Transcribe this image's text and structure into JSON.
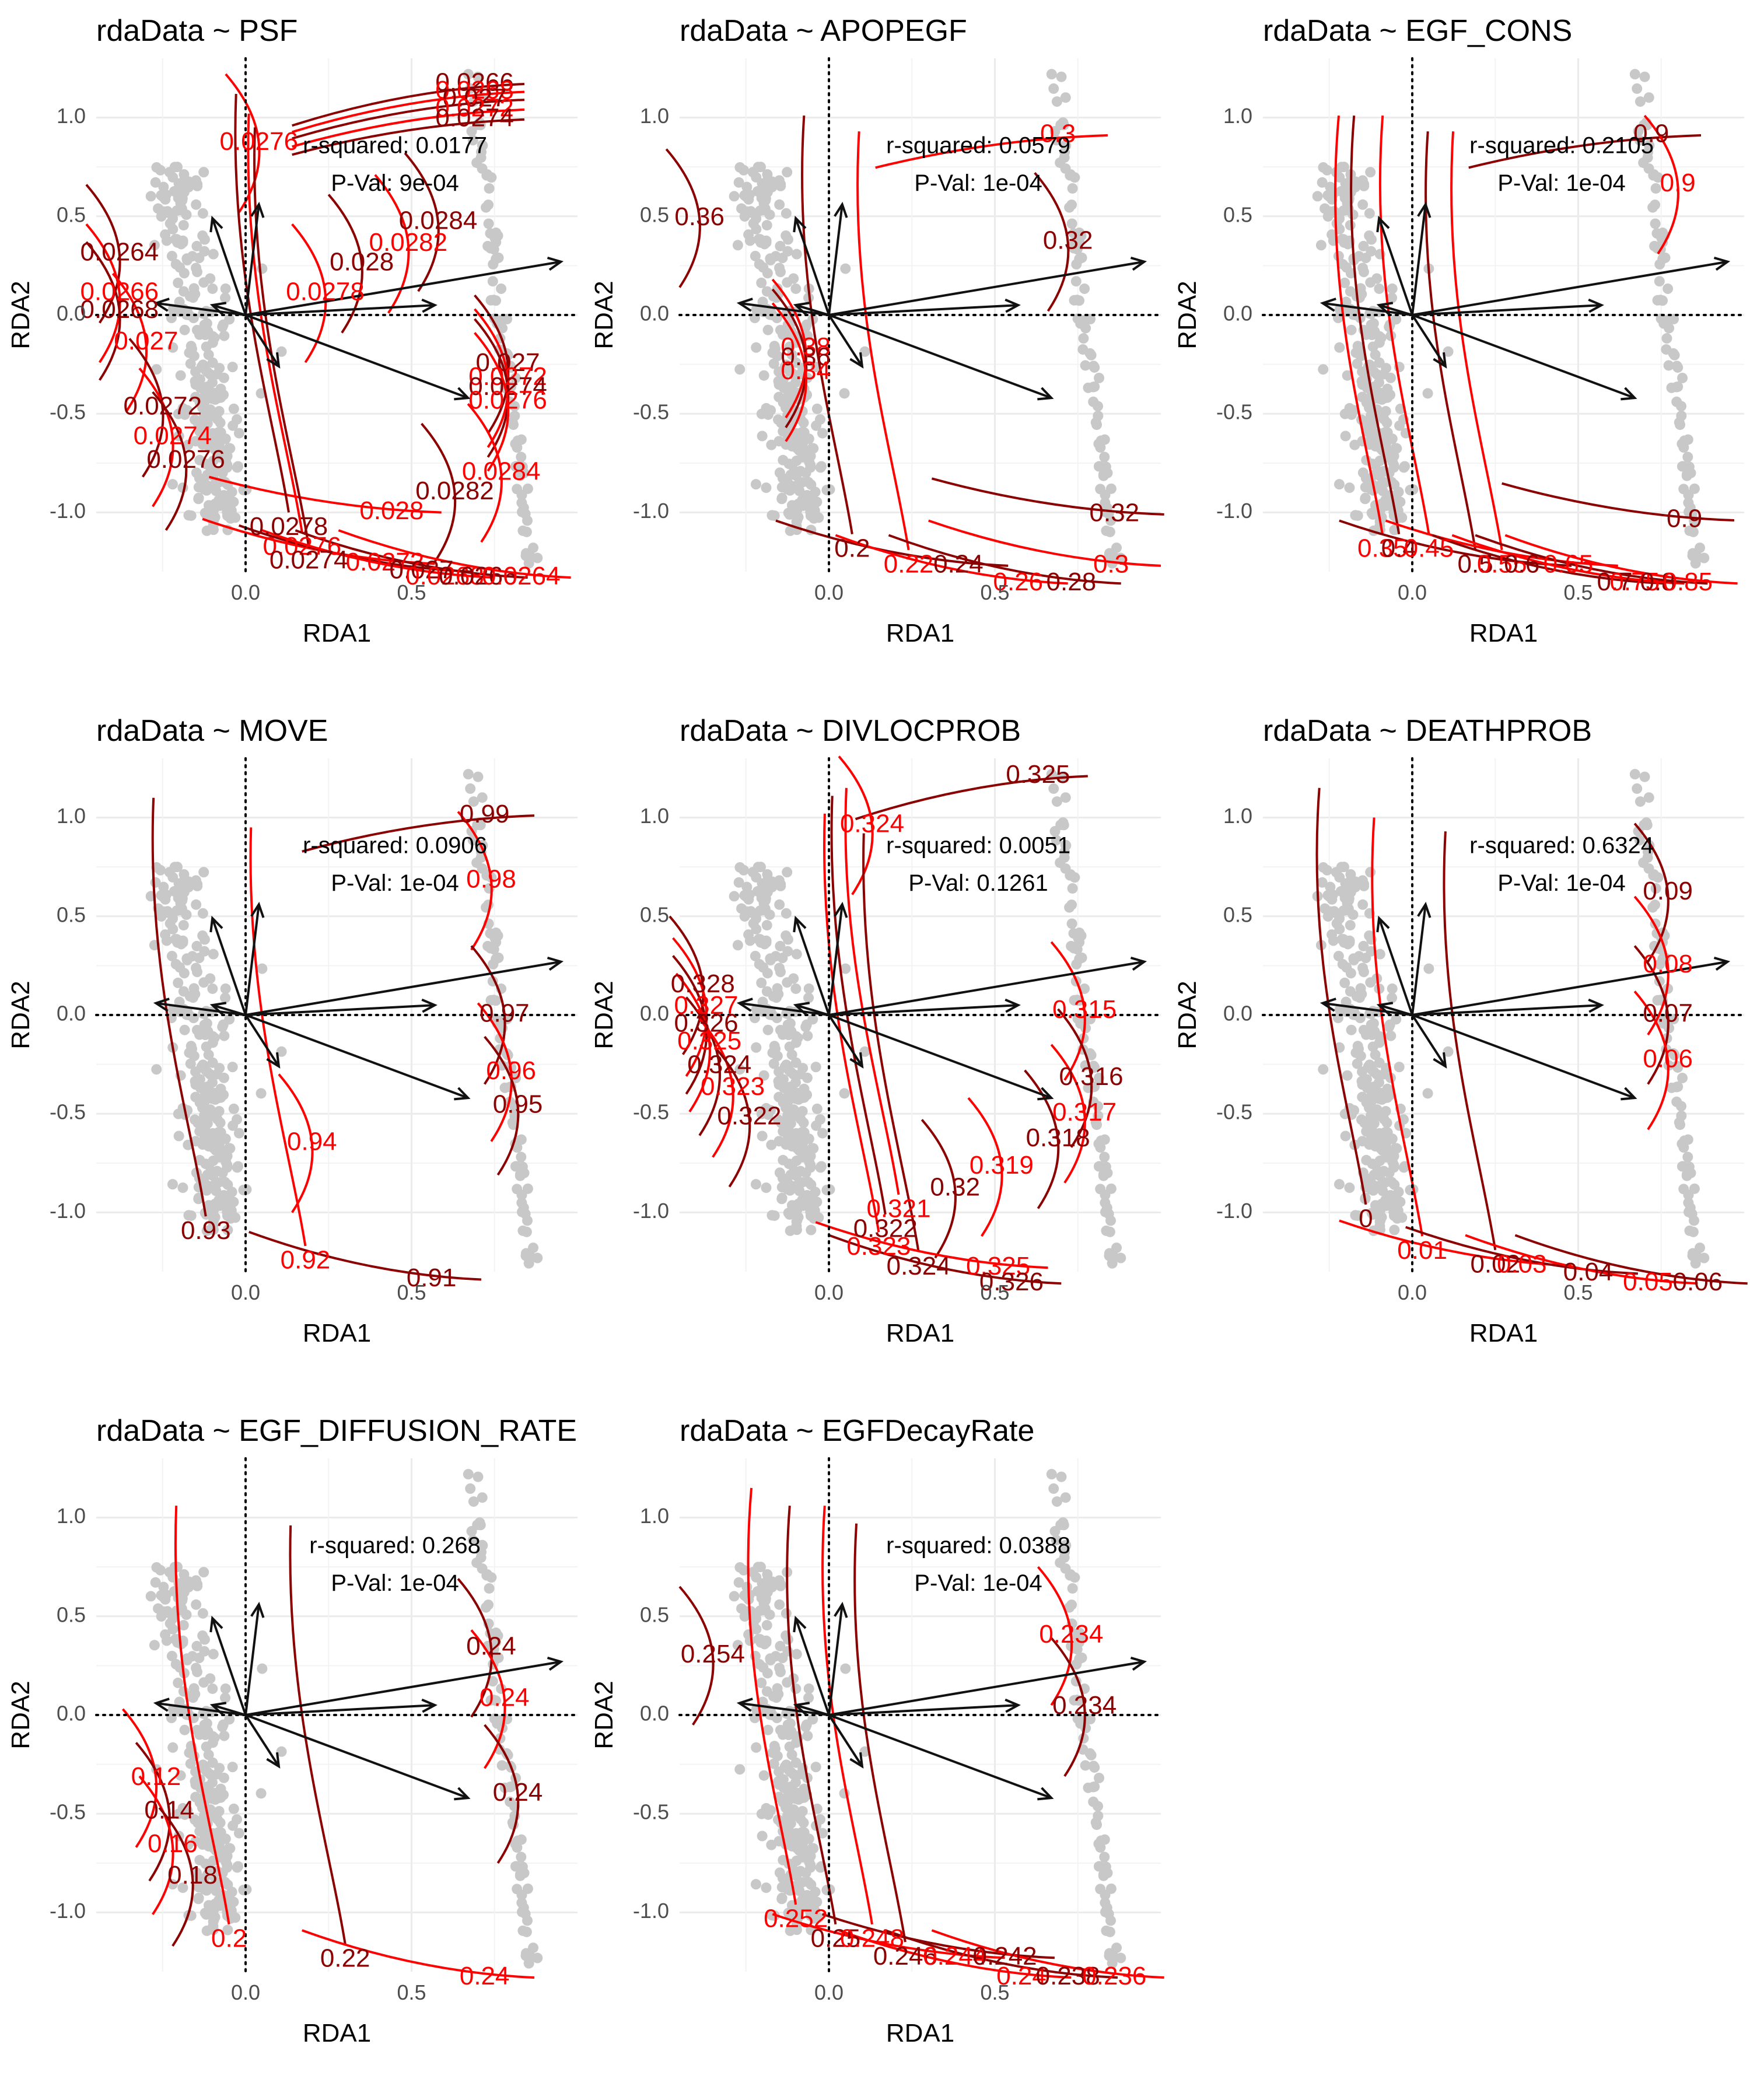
{
  "figure": {
    "axis_x_label": "RDA1",
    "axis_y_label": "RDA2",
    "x_ticks": [
      "0.0",
      "0.5"
    ],
    "y_ticks": [
      "1.0",
      "0.5",
      "0.0",
      "-0.5",
      "-1.0"
    ],
    "colors": {
      "background": "#ffffff",
      "grid": "#ebebeb",
      "points": "#c8c8c8",
      "arrows": "#111111",
      "contour_low": "#ff0000",
      "contour_high": "#8b0000",
      "text": "#000000"
    }
  },
  "chart_data": [
    {
      "type": "scatter",
      "title": "rdaData ~ PSF",
      "xlabel": "RDA1",
      "ylabel": "RDA2",
      "xlim": [
        -0.45,
        1.0
      ],
      "ylim": [
        -1.3,
        1.3
      ],
      "grid": true,
      "annotations": [
        "r-squared: 0.0177",
        "P-Val: 9e-04"
      ],
      "contour_labels": [
        {
          "text": "0.0266",
          "x": 0.69,
          "y": 1.17
        },
        {
          "text": "0.0268",
          "x": 0.69,
          "y": 1.13
        },
        {
          "text": "0.027",
          "x": 0.69,
          "y": 1.09
        },
        {
          "text": "0.0272",
          "x": 0.69,
          "y": 1.04
        },
        {
          "text": "0.0274",
          "x": 0.69,
          "y": 0.99
        },
        {
          "text": "0.0276",
          "x": 0.04,
          "y": 0.87
        },
        {
          "text": "0.0284",
          "x": 0.58,
          "y": 0.47
        },
        {
          "text": "0.0282",
          "x": 0.49,
          "y": 0.36
        },
        {
          "text": "0.028",
          "x": 0.35,
          "y": 0.26
        },
        {
          "text": "0.0278",
          "x": 0.24,
          "y": 0.11
        },
        {
          "text": "0.0264",
          "x": -0.38,
          "y": 0.31
        },
        {
          "text": "0.0266",
          "x": -0.38,
          "y": 0.11
        },
        {
          "text": "0.0268",
          "x": -0.38,
          "y": 0.02
        },
        {
          "text": "0.027",
          "x": -0.3,
          "y": -0.14
        },
        {
          "text": "0.027",
          "x": 0.79,
          "y": -0.25
        },
        {
          "text": "0.0272",
          "x": 0.79,
          "y": -0.32
        },
        {
          "text": "0.0274",
          "x": 0.79,
          "y": -0.37
        },
        {
          "text": "0.0276",
          "x": 0.79,
          "y": -0.44
        },
        {
          "text": "0.0272",
          "x": -0.25,
          "y": -0.47
        },
        {
          "text": "0.0274",
          "x": -0.22,
          "y": -0.62
        },
        {
          "text": "0.0276",
          "x": -0.18,
          "y": -0.74
        },
        {
          "text": "0.0284",
          "x": 0.77,
          "y": -0.8
        },
        {
          "text": "0.0282",
          "x": 0.63,
          "y": -0.9
        },
        {
          "text": "0.028",
          "x": 0.44,
          "y": -1.0
        },
        {
          "text": "0.0278",
          "x": 0.13,
          "y": -1.08
        },
        {
          "text": "0.0276",
          "x": 0.17,
          "y": -1.18
        },
        {
          "text": "0.0274",
          "x": 0.19,
          "y": -1.25
        },
        {
          "text": "0.0272",
          "x": 0.42,
          "y": -1.26
        },
        {
          "text": "0.027",
          "x": 0.53,
          "y": -1.3
        },
        {
          "text": "0.0268",
          "x": 0.6,
          "y": -1.33
        },
        {
          "text": "0.0266",
          "x": 0.7,
          "y": -1.33
        },
        {
          "text": "0.0264",
          "x": 0.83,
          "y": -1.33
        }
      ]
    },
    {
      "type": "scatter",
      "title": "rdaData ~ APOPEGF",
      "xlabel": "RDA1",
      "ylabel": "RDA2",
      "xlim": [
        -0.45,
        1.0
      ],
      "ylim": [
        -1.3,
        1.3
      ],
      "grid": true,
      "annotations": [
        "r-squared: 0.0579",
        "P-Val: 1e-04"
      ],
      "contour_labels": [
        {
          "text": "0.36",
          "x": -0.39,
          "y": 0.49
        },
        {
          "text": "0.3",
          "x": 0.69,
          "y": 0.91
        },
        {
          "text": "0.32",
          "x": 0.72,
          "y": 0.37
        },
        {
          "text": "0.38",
          "x": -0.07,
          "y": -0.17
        },
        {
          "text": "0.36",
          "x": -0.07,
          "y": -0.22
        },
        {
          "text": "0.34",
          "x": -0.07,
          "y": -0.29
        },
        {
          "text": "0.2",
          "x": 0.07,
          "y": -1.19
        },
        {
          "text": "0.22",
          "x": 0.24,
          "y": -1.27
        },
        {
          "text": "0.24",
          "x": 0.39,
          "y": -1.27
        },
        {
          "text": "0.26",
          "x": 0.57,
          "y": -1.36
        },
        {
          "text": "0.28",
          "x": 0.73,
          "y": -1.36
        },
        {
          "text": "0.3",
          "x": 0.85,
          "y": -1.27
        },
        {
          "text": "0.32",
          "x": 0.86,
          "y": -1.01
        }
      ]
    },
    {
      "type": "scatter",
      "title": "rdaData ~ EGF_CONS",
      "xlabel": "RDA1",
      "ylabel": "RDA2",
      "xlim": [
        -0.45,
        1.0
      ],
      "ylim": [
        -1.3,
        1.3
      ],
      "grid": true,
      "annotations": [
        "r-squared: 0.2105",
        "P-Val: 1e-04"
      ],
      "contour_labels": [
        {
          "text": "0.9",
          "x": 0.72,
          "y": 0.91
        },
        {
          "text": "0.9",
          "x": 0.8,
          "y": 0.66
        },
        {
          "text": "0.9",
          "x": 0.82,
          "y": -1.04
        },
        {
          "text": "0.35",
          "x": -0.09,
          "y": -1.19
        },
        {
          "text": "0.4",
          "x": -0.04,
          "y": -1.19
        },
        {
          "text": "0.45",
          "x": 0.05,
          "y": -1.19
        },
        {
          "text": "0.5",
          "x": 0.19,
          "y": -1.27
        },
        {
          "text": "0.55",
          "x": 0.27,
          "y": -1.27
        },
        {
          "text": "0.6",
          "x": 0.33,
          "y": -1.27
        },
        {
          "text": "0.65",
          "x": 0.47,
          "y": -1.27
        },
        {
          "text": "0.7",
          "x": 0.61,
          "y": -1.36
        },
        {
          "text": "0.75",
          "x": 0.67,
          "y": -1.36
        },
        {
          "text": "0.8",
          "x": 0.74,
          "y": -1.36
        },
        {
          "text": "0.85",
          "x": 0.83,
          "y": -1.36
        }
      ]
    },
    {
      "type": "scatter",
      "title": "rdaData ~ MOVE",
      "xlabel": "RDA1",
      "ylabel": "RDA2",
      "xlim": [
        -0.45,
        1.0
      ],
      "ylim": [
        -1.3,
        1.3
      ],
      "grid": true,
      "annotations": [
        "r-squared: 0.0906",
        "P-Val: 1e-04"
      ],
      "contour_labels": [
        {
          "text": "0.99",
          "x": 0.72,
          "y": 1.01
        },
        {
          "text": "0.98",
          "x": 0.74,
          "y": 0.68
        },
        {
          "text": "0.97",
          "x": 0.78,
          "y": 0.0
        },
        {
          "text": "0.96",
          "x": 0.8,
          "y": -0.29
        },
        {
          "text": "0.95",
          "x": 0.82,
          "y": -0.46
        },
        {
          "text": "0.94",
          "x": 0.2,
          "y": -0.65
        },
        {
          "text": "0.93",
          "x": -0.12,
          "y": -1.1
        },
        {
          "text": "0.92",
          "x": 0.18,
          "y": -1.25
        },
        {
          "text": "0.91",
          "x": 0.56,
          "y": -1.34
        }
      ]
    },
    {
      "type": "scatter",
      "title": "rdaData ~ DIVLOCPROB",
      "xlabel": "RDA1",
      "ylabel": "RDA2",
      "xlim": [
        -0.45,
        1.0
      ],
      "ylim": [
        -1.3,
        1.3
      ],
      "grid": true,
      "annotations": [
        "r-squared: 0.0051",
        "P-Val: 0.1261"
      ],
      "contour_labels": [
        {
          "text": "0.325",
          "x": 0.63,
          "y": 1.21
        },
        {
          "text": "0.324",
          "x": 0.13,
          "y": 0.96
        },
        {
          "text": "0.328",
          "x": -0.38,
          "y": 0.15
        },
        {
          "text": "0.327",
          "x": -0.37,
          "y": 0.04
        },
        {
          "text": "0.326",
          "x": -0.37,
          "y": -0.05
        },
        {
          "text": "0.325",
          "x": -0.36,
          "y": -0.14
        },
        {
          "text": "0.324",
          "x": -0.33,
          "y": -0.26
        },
        {
          "text": "0.323",
          "x": -0.29,
          "y": -0.37
        },
        {
          "text": "0.322",
          "x": -0.24,
          "y": -0.52
        },
        {
          "text": "0.315",
          "x": 0.77,
          "y": 0.02
        },
        {
          "text": "0.316",
          "x": 0.79,
          "y": -0.32
        },
        {
          "text": "0.317",
          "x": 0.77,
          "y": -0.5
        },
        {
          "text": "0.318",
          "x": 0.69,
          "y": -0.63
        },
        {
          "text": "0.319",
          "x": 0.52,
          "y": -0.77
        },
        {
          "text": "0.32",
          "x": 0.38,
          "y": -0.88
        },
        {
          "text": "0.321",
          "x": 0.21,
          "y": -0.99
        },
        {
          "text": "0.322",
          "x": 0.17,
          "y": -1.09
        },
        {
          "text": "0.323",
          "x": 0.15,
          "y": -1.18
        },
        {
          "text": "0.324",
          "x": 0.27,
          "y": -1.28
        },
        {
          "text": "0.325",
          "x": 0.51,
          "y": -1.28
        },
        {
          "text": "0.326",
          "x": 0.55,
          "y": -1.36
        }
      ]
    },
    {
      "type": "scatter",
      "title": "rdaData ~ DEATHPROB",
      "xlabel": "RDA1",
      "ylabel": "RDA2",
      "xlim": [
        -0.45,
        1.0
      ],
      "ylim": [
        -1.3,
        1.3
      ],
      "grid": true,
      "annotations": [
        "r-squared: 0.6324",
        "P-Val: 1e-04"
      ],
      "contour_labels": [
        {
          "text": "0.09",
          "x": 0.77,
          "y": 0.62
        },
        {
          "text": "0.08",
          "x": 0.77,
          "y": 0.25
        },
        {
          "text": "0.07",
          "x": 0.77,
          "y": 0.0
        },
        {
          "text": "0.06",
          "x": 0.77,
          "y": -0.23
        },
        {
          "text": "0",
          "x": -0.14,
          "y": -1.04
        },
        {
          "text": "0.01",
          "x": 0.03,
          "y": -1.2
        },
        {
          "text": "0.02",
          "x": 0.25,
          "y": -1.27
        },
        {
          "text": "0.03",
          "x": 0.33,
          "y": -1.27
        },
        {
          "text": "0.04",
          "x": 0.53,
          "y": -1.31
        },
        {
          "text": "0.05",
          "x": 0.71,
          "y": -1.36
        },
        {
          "text": "0.06",
          "x": 0.86,
          "y": -1.36
        }
      ]
    },
    {
      "type": "scatter",
      "title": "rdaData ~ EGF_DIFFUSION_RATE",
      "xlabel": "RDA1",
      "ylabel": "RDA2",
      "xlim": [
        -0.45,
        1.0
      ],
      "ylim": [
        -1.3,
        1.3
      ],
      "grid": true,
      "annotations": [
        "r-squared: 0.268",
        "P-Val: 1e-04"
      ],
      "contour_labels": [
        {
          "text": "0.24",
          "x": 0.74,
          "y": 0.34
        },
        {
          "text": "0.24",
          "x": 0.78,
          "y": 0.08
        },
        {
          "text": "0.24",
          "x": 0.82,
          "y": -0.4
        },
        {
          "text": "0.12",
          "x": -0.27,
          "y": -0.32
        },
        {
          "text": "0.14",
          "x": -0.23,
          "y": -0.49
        },
        {
          "text": "0.16",
          "x": -0.22,
          "y": -0.66
        },
        {
          "text": "0.18",
          "x": -0.16,
          "y": -0.82
        },
        {
          "text": "0.2",
          "x": -0.05,
          "y": -1.14
        },
        {
          "text": "0.22",
          "x": 0.3,
          "y": -1.24
        },
        {
          "text": "0.24",
          "x": 0.72,
          "y": -1.33
        }
      ]
    },
    {
      "type": "scatter",
      "title": "rdaData ~ EGFDecayRate",
      "xlabel": "RDA1",
      "ylabel": "RDA2",
      "xlim": [
        -0.45,
        1.0
      ],
      "ylim": [
        -1.3,
        1.3
      ],
      "grid": true,
      "annotations": [
        "r-squared: 0.0388",
        "P-Val: 1e-04"
      ],
      "contour_labels": [
        {
          "text": "0.254",
          "x": -0.35,
          "y": 0.3
        },
        {
          "text": "0.234",
          "x": 0.73,
          "y": 0.4
        },
        {
          "text": "0.234",
          "x": 0.77,
          "y": 0.04
        },
        {
          "text": "0.252",
          "x": -0.1,
          "y": -1.04
        },
        {
          "text": "0.25",
          "x": 0.02,
          "y": -1.14
        },
        {
          "text": "0.248",
          "x": 0.13,
          "y": -1.14
        },
        {
          "text": "0.246",
          "x": 0.23,
          "y": -1.23
        },
        {
          "text": "0.244",
          "x": 0.38,
          "y": -1.23
        },
        {
          "text": "0.242",
          "x": 0.53,
          "y": -1.23
        },
        {
          "text": "0.24",
          "x": 0.58,
          "y": -1.33
        },
        {
          "text": "0.238",
          "x": 0.72,
          "y": -1.33
        },
        {
          "text": "0.236",
          "x": 0.86,
          "y": -1.33
        }
      ]
    }
  ]
}
